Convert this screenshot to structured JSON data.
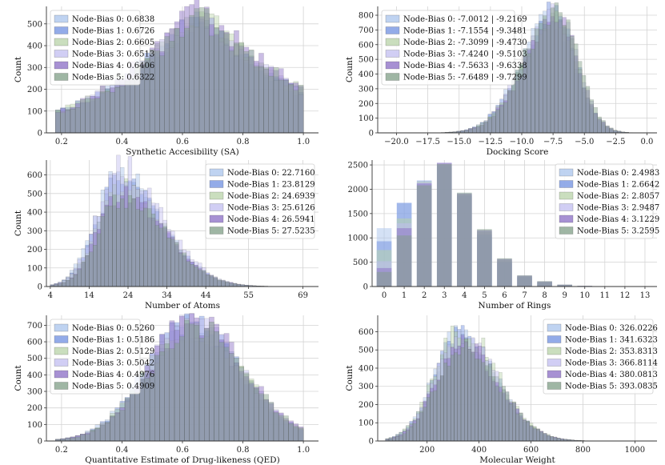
{
  "series_colors": [
    "#a9c4ec",
    "#6f8fe0",
    "#b8d3a8",
    "#c2bdf0",
    "#8a6cc4",
    "#7f9e86"
  ],
  "chart_data": [
    {
      "type": "histogram",
      "xlabel": "Synthetic Accesibility (SA)",
      "ylabel": "Count",
      "xlim": [
        0.15,
        1.05
      ],
      "ylim": [
        0,
        580
      ],
      "xticks": [
        0.2,
        0.4,
        0.6,
        0.8,
        1.0
      ],
      "xtick_labels": [
        "0.2",
        "0.4",
        "0.6",
        "0.8",
        "1.0"
      ],
      "yticks": [
        0,
        100,
        200,
        300,
        400,
        500
      ],
      "legend_position": "top-left",
      "dist": {
        "type": "skew",
        "lo": 0.18,
        "hi": 1.0,
        "mode": 0.65,
        "sl": 0.18,
        "sr": 0.2,
        "k": 1.3,
        "bins": 50
      },
      "series": [
        {
          "name": "Node-Bias 0",
          "legend": "Node-Bias 0: 0.6838",
          "peak": 505
        },
        {
          "name": "Node-Bias 1",
          "legend": "Node-Bias 1: 0.6726",
          "peak": 525
        },
        {
          "name": "Node-Bias 2",
          "legend": "Node-Bias 2: 0.6605",
          "peak": 545
        },
        {
          "name": "Node-Bias 3",
          "legend": "Node-Bias 3: 0.6513",
          "peak": 525
        },
        {
          "name": "Node-Bias 4",
          "legend": "Node-Bias 4: 0.6406",
          "peak": 560
        },
        {
          "name": "Node-Bias 5",
          "legend": "Node-Bias 5: 0.6322",
          "peak": 530
        }
      ]
    },
    {
      "type": "histogram",
      "xlabel": "Docking Score",
      "ylabel": "Count",
      "xlim": [
        -21.5,
        0.8
      ],
      "ylim": [
        0,
        860
      ],
      "xticks": [
        -20.0,
        -17.5,
        -15.0,
        -12.5,
        -10.0,
        -7.5,
        -5.0,
        -2.5,
        0.0
      ],
      "xtick_labels": [
        "−20.0",
        "−17.5",
        "−15.0",
        "−12.5",
        "−10.0",
        "−7.5",
        "−5.0",
        "−2.5",
        "0.0"
      ],
      "yticks": [
        0,
        100,
        200,
        300,
        400,
        500,
        600,
        700,
        800
      ],
      "legend_position": "top-left",
      "dist": {
        "type": "skew",
        "lo": -20.5,
        "hi": -0.2,
        "mode": -7.3,
        "sl": 2.6,
        "sr": 1.7,
        "k": 2,
        "bins": 65
      },
      "series": [
        {
          "name": "Node-Bias 0",
          "legend": "Node-Bias 0: -7.0012 | -9.2169",
          "peak": 790
        },
        {
          "name": "Node-Bias 1",
          "legend": "Node-Bias 1: -7.1554 | -9.3481",
          "peak": 820
        },
        {
          "name": "Node-Bias 2",
          "legend": "Node-Bias 2: -7.3099 | -9.4730",
          "peak": 800
        },
        {
          "name": "Node-Bias 3",
          "legend": "Node-Bias 3: -7.4240 | -9.5103",
          "peak": 810
        },
        {
          "name": "Node-Bias 4",
          "legend": "Node-Bias 4: -7.5633 | -9.6338",
          "peak": 780
        },
        {
          "name": "Node-Bias 5",
          "legend": "Node-Bias 5: -7.6489 | -9.7299",
          "peak": 830
        }
      ]
    },
    {
      "type": "histogram",
      "xlabel": "Number of Atoms",
      "ylabel": "Count",
      "xlim": [
        3,
        73
      ],
      "ylim": [
        0,
        680
      ],
      "xticks": [
        4,
        14,
        24,
        34,
        44,
        55,
        69
      ],
      "xtick_labels": [
        "4",
        "14",
        "24",
        "34",
        "44",
        "55",
        "69"
      ],
      "yticks": [
        0,
        100,
        200,
        300,
        400,
        500,
        600
      ],
      "legend_position": "top-right",
      "dist": {
        "type": "skew",
        "lo": 4,
        "hi": 70,
        "mode": 22,
        "sl": 6,
        "sr": 11,
        "k": 2,
        "bins": 66
      },
      "series": [
        {
          "name": "Node-Bias 0",
          "legend": "Node-Bias 0: 22.7160",
          "peak": 600
        },
        {
          "name": "Node-Bias 1",
          "legend": "Node-Bias 1: 23.8129",
          "peak": 560
        },
        {
          "name": "Node-Bias 2",
          "legend": "Node-Bias 2: 24.6939",
          "peak": 540
        },
        {
          "name": "Node-Bias 3",
          "legend": "Node-Bias 3: 25.6126",
          "peak": 640
        },
        {
          "name": "Node-Bias 4",
          "legend": "Node-Bias 4: 26.5941",
          "peak": 500
        },
        {
          "name": "Node-Bias 5",
          "legend": "Node-Bias 5: 27.5235",
          "peak": 480
        }
      ]
    },
    {
      "type": "bar",
      "xlabel": "Number of Rings",
      "ylabel": "",
      "xlim": [
        -0.6,
        13.6
      ],
      "ylim": [
        0,
        2600
      ],
      "xticks": [
        0,
        1,
        2,
        3,
        4,
        5,
        6,
        7,
        8,
        9,
        10,
        11,
        12,
        13
      ],
      "xtick_labels": [
        "0",
        "1",
        "2",
        "3",
        "4",
        "5",
        "6",
        "7",
        "8",
        "9",
        "10",
        "11",
        "12",
        "13"
      ],
      "yticks": [
        0,
        500,
        1000,
        1500,
        2000,
        2500
      ],
      "legend_position": "top-right",
      "series": [
        {
          "name": "Node-Bias 0",
          "legend": "Node-Bias 0: 2.4983",
          "values": [
            1200,
            1720,
            2100,
            2440,
            1850,
            1020,
            470,
            180,
            80,
            25,
            8,
            3,
            1,
            1
          ]
        },
        {
          "name": "Node-Bias 1",
          "legend": "Node-Bias 1: 2.6642",
          "values": [
            930,
            1720,
            2180,
            2500,
            1880,
            1070,
            510,
            200,
            90,
            30,
            10,
            4,
            2,
            1
          ]
        },
        {
          "name": "Node-Bias 2",
          "legend": "Node-Bias 2: 2.8057",
          "values": [
            750,
            1400,
            2160,
            2530,
            1900,
            1120,
            540,
            210,
            95,
            33,
            11,
            4,
            2,
            1
          ]
        },
        {
          "name": "Node-Bias 3",
          "legend": "Node-Bias 3: 2.9487",
          "values": [
            520,
            1300,
            2140,
            2550,
            1920,
            1150,
            560,
            220,
            100,
            35,
            12,
            5,
            2,
            1
          ]
        },
        {
          "name": "Node-Bias 4",
          "legend": "Node-Bias 4: 3.1229",
          "values": [
            380,
            1200,
            2120,
            2540,
            1910,
            1160,
            570,
            225,
            105,
            38,
            13,
            5,
            2,
            1
          ]
        },
        {
          "name": "Node-Bias 5",
          "legend": "Node-Bias 5: 3.2595",
          "values": [
            300,
            1050,
            2080,
            2520,
            1930,
            1180,
            580,
            230,
            110,
            40,
            14,
            5,
            2,
            1
          ]
        }
      ]
    },
    {
      "type": "histogram",
      "xlabel": "Quantitative Estimate of Drug-likeness (QED)",
      "ylabel": "Count",
      "xlim": [
        0.15,
        1.05
      ],
      "ylim": [
        0,
        760
      ],
      "xticks": [
        0.2,
        0.4,
        0.6,
        0.8,
        1.0
      ],
      "xtick_labels": [
        "0.2",
        "0.4",
        "0.6",
        "0.8",
        "1.0"
      ],
      "yticks": [
        0,
        100,
        200,
        300,
        400,
        500,
        600,
        700
      ],
      "legend_position": "top-left",
      "dist": {
        "type": "skew",
        "lo": 0.18,
        "hi": 1.0,
        "mode": 0.63,
        "sl": 0.15,
        "sr": 0.17,
        "k": 2,
        "bins": 50
      },
      "series": [
        {
          "name": "Node-Bias 0",
          "legend": "Node-Bias 0: 0.5260",
          "peak": 690
        },
        {
          "name": "Node-Bias 1",
          "legend": "Node-Bias 1: 0.5186",
          "peak": 700
        },
        {
          "name": "Node-Bias 2",
          "legend": "Node-Bias 2: 0.5129",
          "peak": 680
        },
        {
          "name": "Node-Bias 3",
          "legend": "Node-Bias 3: 0.5042",
          "peak": 700
        },
        {
          "name": "Node-Bias 4",
          "legend": "Node-Bias 4: 0.4976",
          "peak": 730
        },
        {
          "name": "Node-Bias 5",
          "legend": "Node-Bias 5: 0.4909",
          "peak": 700
        }
      ]
    },
    {
      "type": "histogram",
      "xlabel": "Molecular Weight",
      "ylabel": "Count",
      "xlim": [
        10,
        1085
      ],
      "ylim": [
        0,
        690
      ],
      "xticks": [
        200,
        400,
        600,
        800,
        1000
      ],
      "xtick_labels": [
        "200",
        "400",
        "600",
        "800",
        "1000"
      ],
      "yticks": [
        0,
        100,
        200,
        300,
        400,
        500,
        600
      ],
      "legend_position": "top-right",
      "dist": {
        "type": "skew",
        "lo": 40,
        "hi": 1030,
        "mode": 330,
        "sl": 100,
        "sr": 140,
        "k": 2,
        "bins": 75
      },
      "series": [
        {
          "name": "Node-Bias 0",
          "legend": "Node-Bias 0: 326.0226",
          "peak": 580
        },
        {
          "name": "Node-Bias 1",
          "legend": "Node-Bias 1: 341.6323",
          "peak": 570
        },
        {
          "name": "Node-Bias 2",
          "legend": "Node-Bias 2: 353.8313",
          "peak": 620
        },
        {
          "name": "Node-Bias 3",
          "legend": "Node-Bias 3: 366.8114",
          "peak": 560
        },
        {
          "name": "Node-Bias 4",
          "legend": "Node-Bias 4: 380.0813",
          "peak": 540
        },
        {
          "name": "Node-Bias 5",
          "legend": "Node-Bias 5: 393.0835",
          "peak": 520
        }
      ]
    }
  ]
}
